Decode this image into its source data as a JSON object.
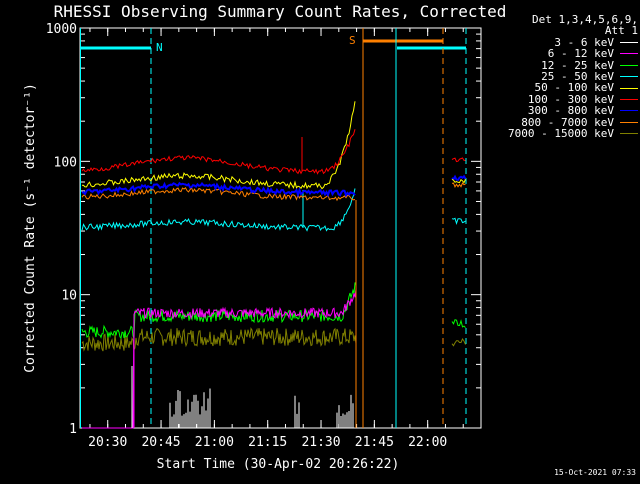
{
  "chart_data": {
    "type": "line",
    "title": "RHESSI Observing Summary Count Rates, Corrected",
    "xlabel": "Start Time (30-Apr-02 20:26:22)",
    "ylabel": "Corrected Count Rate (s⁻¹ detector⁻¹)",
    "yscale": "log",
    "ylim": [
      1,
      1000
    ],
    "xlim_minutes": [
      20.37,
      22.25
    ],
    "x_ticks": [
      {
        "label": "20:30",
        "t": 20.5
      },
      {
        "label": "20:45",
        "t": 20.75
      },
      {
        "label": "21:00",
        "t": 21.0
      },
      {
        "label": "21:15",
        "t": 21.25
      },
      {
        "label": "21:30",
        "t": 21.5
      },
      {
        "label": "21:45",
        "t": 21.75
      },
      {
        "label": "22:00",
        "t": 22.0
      }
    ],
    "y_ticks": [
      {
        "label": "1",
        "v": 1
      },
      {
        "label": "10",
        "v": 10
      },
      {
        "label": "100",
        "v": 100
      },
      {
        "label": "1000",
        "v": 1000
      }
    ],
    "legend_header": [
      "Det 1,3,4,5,6,9,",
      "Att 1"
    ],
    "series": [
      {
        "name": "3 - 6 keV",
        "color": "#ffffff"
      },
      {
        "name": "6 - 12 keV",
        "color": "#ff00ff"
      },
      {
        "name": "12 - 25 keV",
        "color": "#00ff00"
      },
      {
        "name": "25 - 50 keV",
        "color": "#00ffff"
      },
      {
        "name": "50 - 100 keV",
        "color": "#ffff00"
      },
      {
        "name": "100 - 300 keV",
        "color": "#ff0000"
      },
      {
        "name": "300 - 800 keV",
        "color": "#0000ff"
      },
      {
        "name": "800 - 7000 keV",
        "color": "#ff8000"
      },
      {
        "name": "7000 - 15000 keV",
        "color": "#808000"
      }
    ],
    "annotations": [
      {
        "label": "N",
        "color": "#00ffff"
      },
      {
        "label": "S",
        "color": "#ff8000"
      }
    ]
  },
  "footer": {
    "timestamp": "15-Oct-2021 07:33"
  },
  "colors": {
    "background": "#000000",
    "axes": "#ffffff",
    "night": "#00ffff",
    "saa": "#ff8000"
  }
}
